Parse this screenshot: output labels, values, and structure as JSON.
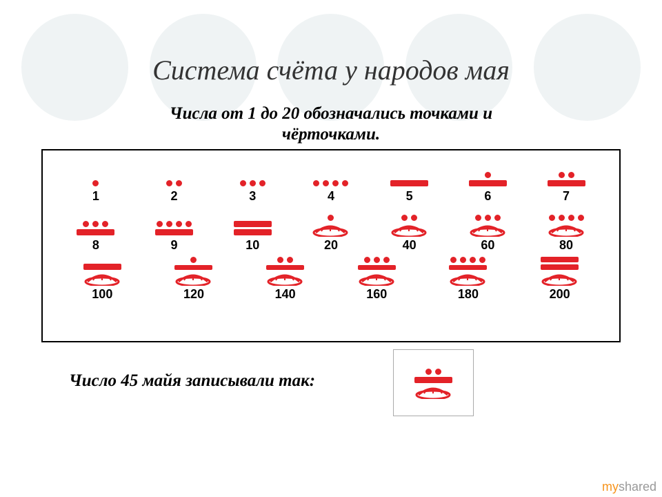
{
  "title": "Система счёта у народов мая",
  "title_fontsize": 40,
  "title_color": "#333333",
  "subtitle": "Числа от 1 до 20 обозначались  точками  и\nчёрточками.",
  "subtitle_fontsize": 25,
  "bottom_text": "Число 45 майя записывали так:",
  "bottom_fontsize": 25,
  "glyph_color": "#e32228",
  "num_color": "#000000",
  "num_fontsize": 18,
  "bg_circle_color": "#eff3f4",
  "watermark": {
    "part1": "my",
    "part2": "shared",
    "fontsize": 18
  },
  "rows": [
    [
      {
        "num": "1",
        "dots": 1,
        "bars": 0,
        "shell": false
      },
      {
        "num": "2",
        "dots": 2,
        "bars": 0,
        "shell": false
      },
      {
        "num": "3",
        "dots": 3,
        "bars": 0,
        "shell": false
      },
      {
        "num": "4",
        "dots": 4,
        "bars": 0,
        "shell": false
      },
      {
        "num": "5",
        "dots": 0,
        "bars": 1,
        "shell": false
      },
      {
        "num": "6",
        "dots": 1,
        "bars": 1,
        "shell": false
      },
      {
        "num": "7",
        "dots": 2,
        "bars": 1,
        "shell": false
      }
    ],
    [
      {
        "num": "8",
        "dots": 3,
        "bars": 1,
        "shell": false
      },
      {
        "num": "9",
        "dots": 4,
        "bars": 1,
        "shell": false
      },
      {
        "num": "10",
        "dots": 0,
        "bars": 2,
        "shell": false
      },
      {
        "num": "20",
        "dots": 1,
        "bars": 0,
        "shell": true
      },
      {
        "num": "40",
        "dots": 2,
        "bars": 0,
        "shell": true
      },
      {
        "num": "60",
        "dots": 3,
        "bars": 0,
        "shell": true
      },
      {
        "num": "80",
        "dots": 4,
        "bars": 0,
        "shell": true
      }
    ],
    [
      {
        "num": "100",
        "dots": 0,
        "bars": 1,
        "shell": true
      },
      {
        "num": "120",
        "dots": 1,
        "bars": 1,
        "shell": true
      },
      {
        "num": "140",
        "dots": 2,
        "bars": 1,
        "shell": true
      },
      {
        "num": "160",
        "dots": 3,
        "bars": 1,
        "shell": true
      },
      {
        "num": "180",
        "dots": 4,
        "bars": 1,
        "shell": true
      },
      {
        "num": "200",
        "dots": 0,
        "bars": 2,
        "shell": true
      }
    ]
  ],
  "example": {
    "top_dots": 2,
    "top_bars": 0,
    "bottom_dots": 0,
    "bottom_bars": 1,
    "bottom_shell": true
  }
}
